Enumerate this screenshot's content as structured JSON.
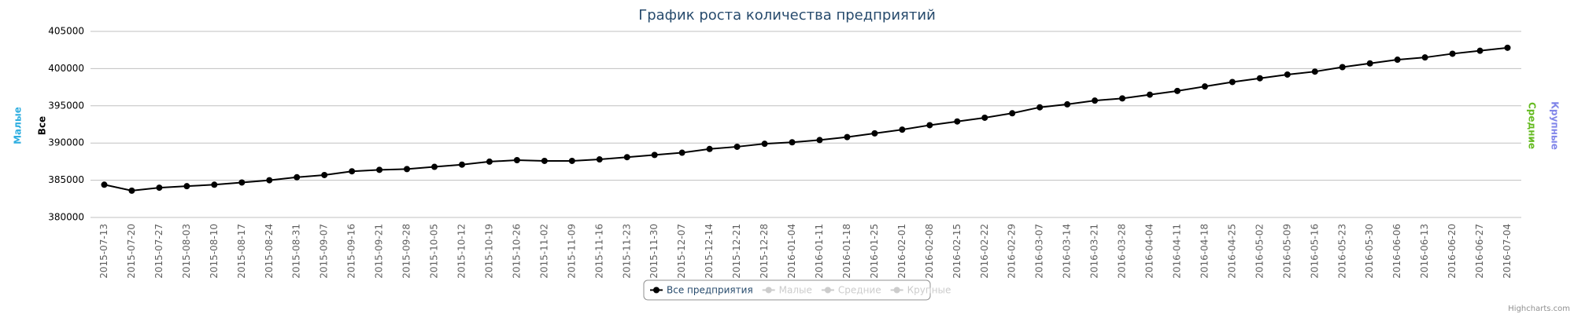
{
  "chart_data": {
    "type": "line",
    "title": "График роста количества предприятий",
    "categories": [
      "2015-07-13",
      "2015-07-20",
      "2015-07-27",
      "2015-08-03",
      "2015-08-10",
      "2015-08-17",
      "2015-08-24",
      "2015-08-31",
      "2015-09-07",
      "2015-09-16",
      "2015-09-21",
      "2015-09-28",
      "2015-10-05",
      "2015-10-12",
      "2015-10-19",
      "2015-10-26",
      "2015-11-02",
      "2015-11-09",
      "2015-11-16",
      "2015-11-23",
      "2015-11-30",
      "2015-12-07",
      "2015-12-14",
      "2015-12-21",
      "2015-12-28",
      "2016-01-04",
      "2016-01-11",
      "2016-01-18",
      "2016-01-25",
      "2016-02-01",
      "2016-02-08",
      "2016-02-15",
      "2016-02-22",
      "2016-02-29",
      "2016-03-07",
      "2016-03-14",
      "2016-03-21",
      "2016-03-28",
      "2016-04-04",
      "2016-04-11",
      "2016-04-18",
      "2016-04-25",
      "2016-05-02",
      "2016-05-09",
      "2016-05-16",
      "2016-05-23",
      "2016-05-30",
      "2016-06-06",
      "2016-06-13",
      "2016-06-20",
      "2016-06-27",
      "2016-07-04"
    ],
    "series": [
      {
        "name": "Все предприятия",
        "color": "#000000",
        "values": [
          384400,
          383600,
          384000,
          384200,
          384400,
          384700,
          385000,
          385400,
          385700,
          386200,
          386400,
          386500,
          386800,
          387100,
          387500,
          387700,
          387600,
          387600,
          387800,
          388100,
          388400,
          388700,
          389200,
          389500,
          389900,
          390100,
          390400,
          390800,
          391300,
          391800,
          392400,
          392900,
          393400,
          394000,
          394800,
          395200,
          395700,
          396000,
          396500,
          397000,
          397600,
          398200,
          398700,
          399200,
          399600,
          400200,
          400700,
          401200,
          401500,
          402000,
          402400,
          402800
        ]
      },
      {
        "name": "Малые",
        "color": "#cccccc",
        "hidden": true
      },
      {
        "name": "Средние",
        "color": "#cccccc",
        "hidden": true
      },
      {
        "name": "Крупные",
        "color": "#cccccc",
        "hidden": true
      }
    ],
    "axis_titles": [
      {
        "text": "Малые",
        "color": "#2eaee0",
        "side": "left"
      },
      {
        "text": "Все",
        "color": "#000000",
        "side": "left"
      },
      {
        "text": "Средние",
        "color": "#66bb22",
        "side": "right"
      },
      {
        "text": "Крупные",
        "color": "#8085e9",
        "side": "right"
      }
    ],
    "ylim": [
      380000,
      405000
    ],
    "yticks": [
      380000,
      385000,
      390000,
      395000,
      400000,
      405000
    ],
    "grid": true,
    "legend": "bottom",
    "credits": "Highcharts.com"
  }
}
